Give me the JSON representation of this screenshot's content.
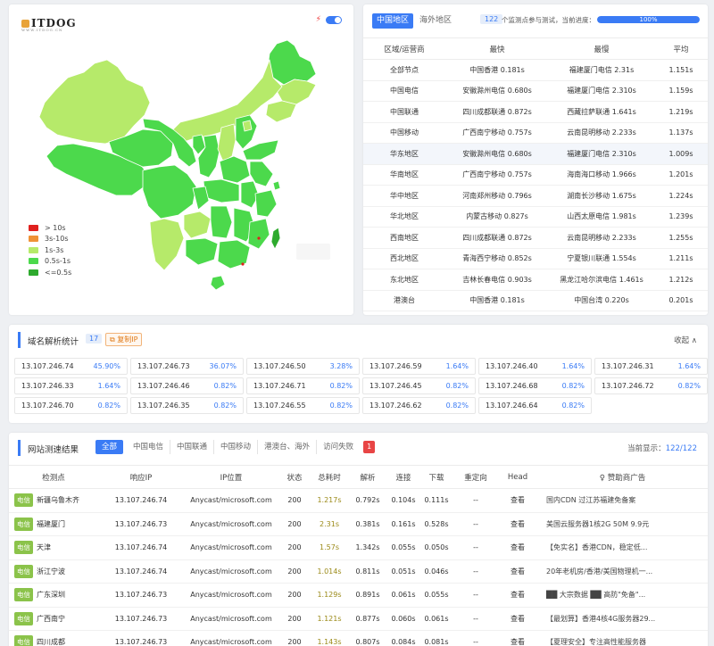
{
  "brand": {
    "name": "ITDOG",
    "tagline": "WWW.ITDOG.CN"
  },
  "colors": {
    "accent": "#3a7bf5",
    "very_fast": "#2eaa2e",
    "fast": "#4cd94c",
    "mid": "#b6ea6a",
    "slow": "#ef9236",
    "very_slow": "#e0201e"
  },
  "map_legend": [
    {
      "label": "> 10s",
      "color": "#e0201e"
    },
    {
      "label": "3s-10s",
      "color": "#ef9236"
    },
    {
      "label": "1s-3s",
      "color": "#b6ea6a"
    },
    {
      "label": "0.5s-1s",
      "color": "#4cd94c"
    },
    {
      "label": "<=0.5s",
      "color": "#2eaa2e"
    }
  ],
  "region_tabs": [
    "中国地区",
    "海外地区"
  ],
  "progress": {
    "count": "122",
    "text": "个监测点参与测试，当前进度：",
    "value": 1.0,
    "label": "100%"
  },
  "region_table": {
    "headers": [
      "区域/运营商",
      "最快",
      "最慢",
      "平均"
    ],
    "rows": [
      [
        "全部节点",
        "中国香港 0.181s",
        "福建厦门电信 2.31s",
        "1.151s"
      ],
      [
        "中国电信",
        "安徽滁州电信 0.680s",
        "福建厦门电信 2.310s",
        "1.159s"
      ],
      [
        "中国联通",
        "四川成都联通 0.872s",
        "西藏拉萨联通 1.641s",
        "1.219s"
      ],
      [
        "中国移动",
        "广西南宁移动 0.757s",
        "云南昆明移动 2.233s",
        "1.137s"
      ],
      [
        "华东地区",
        "安徽滁州电信 0.680s",
        "福建厦门电信 2.310s",
        "1.009s"
      ],
      [
        "华南地区",
        "广西南宁移动 0.757s",
        "海南海口移动 1.966s",
        "1.201s"
      ],
      [
        "华中地区",
        "河南郑州移动 0.796s",
        "湖南长沙移动 1.675s",
        "1.224s"
      ],
      [
        "华北地区",
        "内蒙古移动 0.827s",
        "山西太原电信 1.981s",
        "1.239s"
      ],
      [
        "西南地区",
        "四川成都联通 0.872s",
        "云南昆明移动 2.233s",
        "1.255s"
      ],
      [
        "西北地区",
        "青海西宁移动 0.852s",
        "宁夏银川联通 1.554s",
        "1.211s"
      ],
      [
        "东北地区",
        "吉林长春电信 0.903s",
        "黑龙江哈尔滨电信 1.461s",
        "1.212s"
      ],
      [
        "港澳台",
        "中国香港 0.181s",
        "中国台湾 0.220s",
        "0.201s"
      ]
    ]
  },
  "dns": {
    "title": "域名解析统计",
    "count": "17",
    "copy_label": "复制IP",
    "collapse_label": "收起 ∧",
    "items": [
      [
        "13.107.246.74",
        "45.90%"
      ],
      [
        "13.107.246.73",
        "36.07%"
      ],
      [
        "13.107.246.50",
        "3.28%"
      ],
      [
        "13.107.246.59",
        "1.64%"
      ],
      [
        "13.107.246.40",
        "1.64%"
      ],
      [
        "13.107.246.31",
        "1.64%"
      ],
      [
        "13.107.246.33",
        "1.64%"
      ],
      [
        "13.107.246.46",
        "0.82%"
      ],
      [
        "13.107.246.71",
        "0.82%"
      ],
      [
        "13.107.246.45",
        "0.82%"
      ],
      [
        "13.107.246.68",
        "0.82%"
      ],
      [
        "13.107.246.72",
        "0.82%"
      ],
      [
        "13.107.246.70",
        "0.82%"
      ],
      [
        "13.107.246.35",
        "0.82%"
      ],
      [
        "13.107.246.55",
        "0.82%"
      ],
      [
        "13.107.246.62",
        "0.82%"
      ],
      [
        "13.107.246.64",
        "0.82%"
      ]
    ]
  },
  "speed": {
    "title": "网站测速结果",
    "filters": [
      "全部",
      "中国电信",
      "中国联通",
      "中国移动",
      "港澳台、海外",
      "访问失败"
    ],
    "fail_count": "1",
    "showing_label": "当前显示：",
    "showing_value": "122/122",
    "headers": [
      "检测点",
      "响应IP",
      "IP位置",
      "状态",
      "总耗时",
      "解析",
      "连接",
      "下载",
      "重定向",
      "Head",
      "赞助商广告"
    ],
    "rows": [
      {
        "isp": "电信",
        "node": "新疆乌鲁木齐",
        "ip": "13.107.246.74",
        "loc": "Anycast/microsoft.com",
        "status": "200",
        "total": "1.217s",
        "dns": "0.792s",
        "conn": "0.104s",
        "dl": "0.111s",
        "redir": "--",
        "head": "查看",
        "ad": "国内CDN 过江苏福建免备案"
      },
      {
        "isp": "电信",
        "node": "福建厦门",
        "ip": "13.107.246.73",
        "loc": "Anycast/microsoft.com",
        "status": "200",
        "total": "2.31s",
        "dns": "0.381s",
        "conn": "0.161s",
        "dl": "0.528s",
        "redir": "--",
        "head": "查看",
        "ad": "美国云服务器1核2G 50M 9.9元"
      },
      {
        "isp": "电信",
        "node": "天津",
        "ip": "13.107.246.74",
        "loc": "Anycast/microsoft.com",
        "status": "200",
        "total": "1.57s",
        "dns": "1.342s",
        "conn": "0.055s",
        "dl": "0.050s",
        "redir": "--",
        "head": "查看",
        "ad": "【免实名】香港CDN，稳定低..."
      },
      {
        "isp": "电信",
        "node": "浙江宁波",
        "ip": "13.107.246.74",
        "loc": "Anycast/microsoft.com",
        "status": "200",
        "total": "1.014s",
        "dns": "0.811s",
        "conn": "0.051s",
        "dl": "0.046s",
        "redir": "--",
        "head": "查看",
        "ad": "20年老机房/香港/美国物理机一..."
      },
      {
        "isp": "电信",
        "node": "广东深圳",
        "ip": "13.107.246.73",
        "loc": "Anycast/microsoft.com",
        "status": "200",
        "total": "1.129s",
        "dns": "0.891s",
        "conn": "0.061s",
        "dl": "0.055s",
        "redir": "--",
        "head": "查看",
        "ad": "██ 大宗数据 ██ 高防\"免备\"..."
      },
      {
        "isp": "电信",
        "node": "广西南宁",
        "ip": "13.107.246.73",
        "loc": "Anycast/microsoft.com",
        "status": "200",
        "total": "1.121s",
        "dns": "0.877s",
        "conn": "0.060s",
        "dl": "0.061s",
        "redir": "--",
        "head": "查看",
        "ad": "【最划算】香港4核4G服务器29..."
      },
      {
        "isp": "电信",
        "node": "四川成都",
        "ip": "13.107.246.73",
        "loc": "Anycast/microsoft.com",
        "status": "200",
        "total": "1.143s",
        "dns": "0.807s",
        "conn": "0.084s",
        "dl": "0.081s",
        "redir": "--",
        "head": "查看",
        "ad": "【夏理安全】专注高性能服务器"
      }
    ]
  }
}
